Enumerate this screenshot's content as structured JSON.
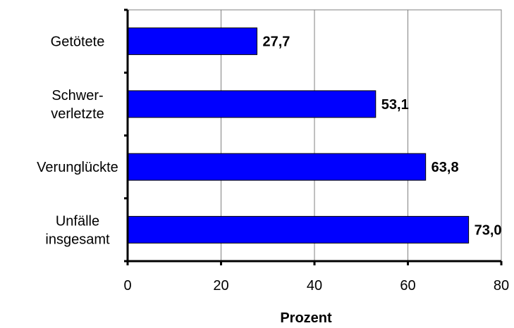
{
  "chart_data": {
    "type": "bar",
    "orientation": "horizontal",
    "categories": [
      [
        "Getötete"
      ],
      [
        "Schwer-",
        "verletzte"
      ],
      [
        "Verunglückte"
      ],
      [
        "Unfälle",
        "insgesamt"
      ]
    ],
    "values": [
      27.7,
      53.1,
      63.8,
      73.0
    ],
    "value_labels": [
      "27,7",
      "53,1",
      "63,8",
      "73,0"
    ],
    "xlabel": "Prozent",
    "ylabel": "",
    "xlim": [
      0,
      80
    ],
    "xticks": [
      0,
      20,
      40,
      60,
      80
    ],
    "grid": "vertical",
    "bar_color": "#0000FF",
    "plot_border_color": "#808080"
  }
}
